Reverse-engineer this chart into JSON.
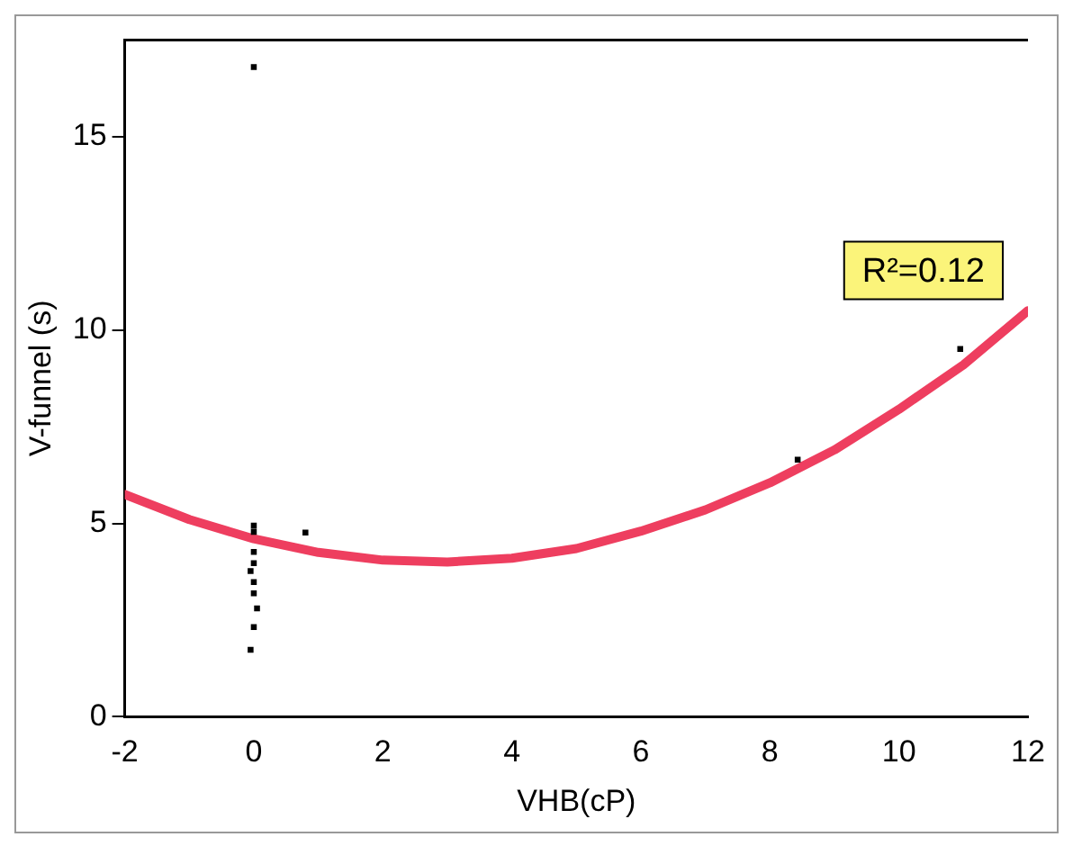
{
  "chart_data": {
    "type": "scatter",
    "xlabel": "VHB(cP)",
    "ylabel": "V-funnel (s)",
    "xlim": [
      -2,
      12
    ],
    "xticks": [
      -2,
      0,
      2,
      4,
      6,
      8,
      10,
      12
    ],
    "ylim": [
      0,
      17.5
    ],
    "yticks": [
      0,
      5,
      10,
      15
    ],
    "grid": false,
    "legend": false,
    "marker": "square",
    "series": [
      {
        "type": "scatter",
        "color": "#000000",
        "x": [
          0,
          0,
          0,
          0.8,
          0,
          0,
          -0.05,
          0,
          0,
          0.05,
          0,
          -0.05,
          8.43,
          10.95
        ],
        "values": [
          16.8,
          4.94,
          4.78,
          4.76,
          4.26,
          3.97,
          3.77,
          3.48,
          3.19,
          2.8,
          2.32,
          1.73,
          6.65,
          9.51
        ]
      },
      {
        "type": "line",
        "color": "#ee3e5f",
        "marker": "none",
        "x": [
          -2,
          -1,
          0,
          1,
          2,
          3,
          4,
          5,
          6,
          7,
          8,
          9,
          10,
          11,
          12
        ],
        "values": [
          5.75,
          5.1,
          4.6,
          4.25,
          4.05,
          4.0,
          4.1,
          4.35,
          4.8,
          5.35,
          6.05,
          6.9,
          7.95,
          9.1,
          10.5
        ]
      }
    ],
    "annotations": [
      "R²=0.12"
    ]
  }
}
